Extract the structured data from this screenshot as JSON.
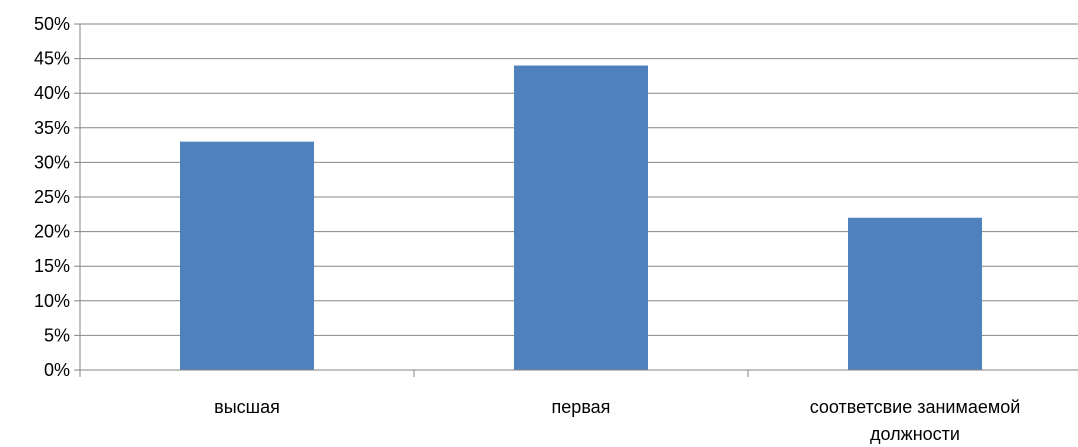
{
  "chart_data": {
    "type": "bar",
    "title": "",
    "xlabel": "",
    "ylabel": "",
    "categories": [
      [
        "высшая"
      ],
      [
        "первая"
      ],
      [
        "соответсвие занимаемой",
        "должности"
      ]
    ],
    "values": [
      33,
      44,
      22
    ],
    "ylim": [
      0,
      50
    ],
    "y_ticks": [
      "0%",
      "5%",
      "10%",
      "15%",
      "20%",
      "25%",
      "30%",
      "35%",
      "40%",
      "45%",
      "50%"
    ],
    "grid": true,
    "legend": "none",
    "colors": {
      "bar": "#4f81bd",
      "grid": "#868686",
      "axis": "#868686"
    }
  }
}
